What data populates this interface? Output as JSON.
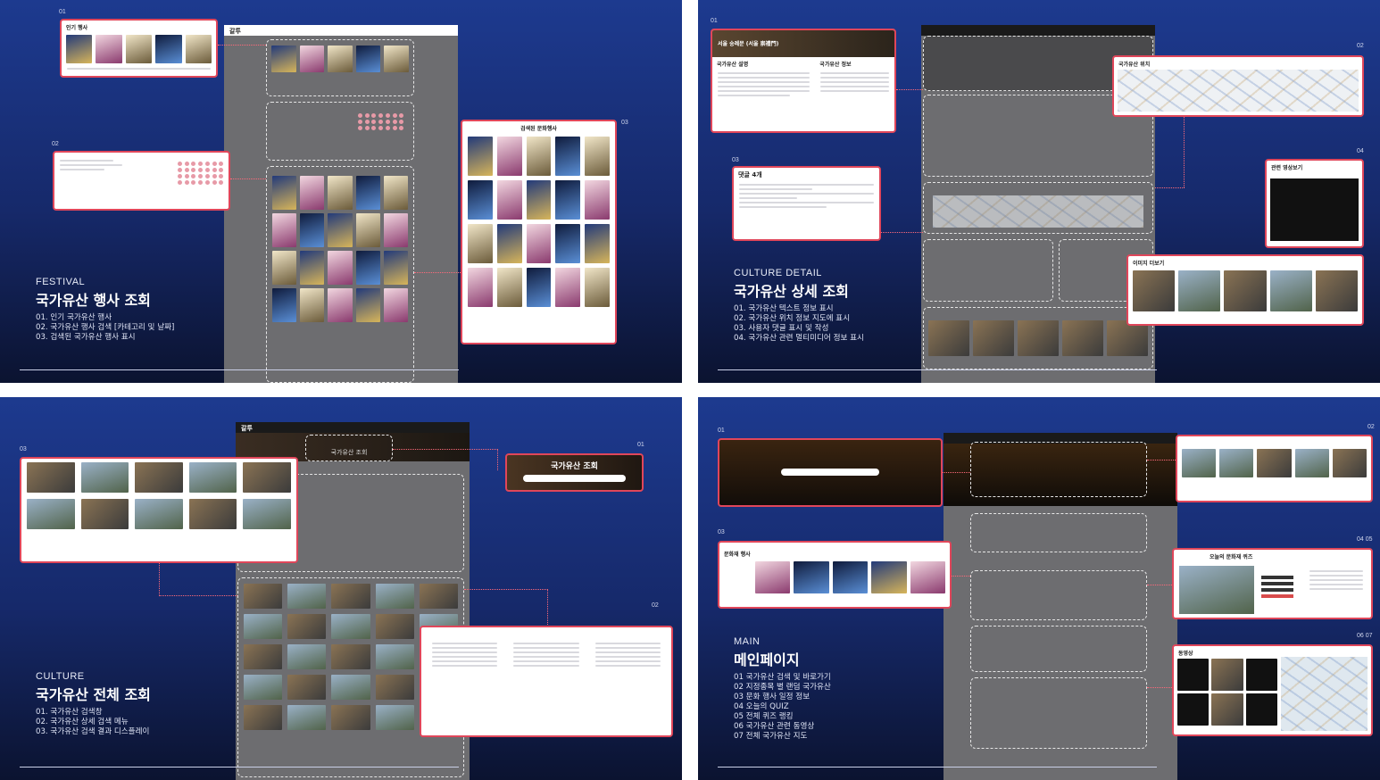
{
  "slides": {
    "festival": {
      "tag": "FESTIVAL",
      "title": "국가유산 행사 조회",
      "items": [
        "01. 인기 국가유산 행사",
        "02. 국가유산 행사 검색 [카테고리 및 날짜]",
        "03. 검색된 국가유산 행사 표시"
      ],
      "callouts": {
        "popular": {
          "num": "01",
          "title": "인기 행사"
        },
        "search": {
          "num": "02"
        },
        "results": {
          "num": "03",
          "title": "검색된 문화행사"
        }
      }
    },
    "culture_detail": {
      "tag": "CULTURE DETAIL",
      "title": "국가유산 상세 조회",
      "items": [
        "01. 국가유산 텍스트 정보 표시",
        "02. 국가유산 위치 정보 지도에 표시",
        "03. 사용자 댓글 표시 및 작성",
        "04. 국가유산 관련 멀티미디어 정보 표시"
      ],
      "callouts": {
        "text": {
          "num": "01",
          "title": "서울 숭례문 (서울 崇禮門)",
          "sub1": "국가유산 설명",
          "sub2": "국가유산 정보"
        },
        "location": {
          "num": "02",
          "title": "국가유산 위치"
        },
        "comments": {
          "num": "03",
          "title": "댓글 4개"
        },
        "video": {
          "num": "04",
          "title": "관련 영상보기"
        },
        "images": {
          "title": "이미지 더보기"
        }
      }
    },
    "culture": {
      "tag": "CULTURE",
      "title": "국가유산 전체 조회",
      "items": [
        "01. 국가유산 검색창",
        "02. 국가유산 상세 검색 메뉴",
        "03. 국가유산 검색 결과 디스플레이"
      ],
      "callouts": {
        "searchbar": {
          "num": "01",
          "title": "국가유산 조회"
        },
        "filter": {
          "num": "02"
        },
        "results": {
          "num": "03"
        }
      },
      "mock_title": "국가유산 조회"
    },
    "main": {
      "tag": "MAIN",
      "title": "메인페이지",
      "items": [
        "01 국가유산 검색 및 바로가기",
        "02 지정종목 별 랜덤 국가유산",
        "03 문화 행사 일정 정보",
        "04 오늘의 QUIZ",
        "05 전체 퀴즈 랭킹",
        "06 국가유산 관련 동영상",
        "07 전체 국가유산 지도"
      ],
      "callouts": {
        "hero": {
          "num": "01"
        },
        "random": {
          "num": "02"
        },
        "events": {
          "num": "03",
          "title": "문화재 행사"
        },
        "quiz": {
          "num": "04 05",
          "title": "오늘의 문화재 퀴즈"
        },
        "video_map": {
          "num": "06 07",
          "title": "동영상"
        }
      }
    }
  },
  "mock_logo": "갈투"
}
